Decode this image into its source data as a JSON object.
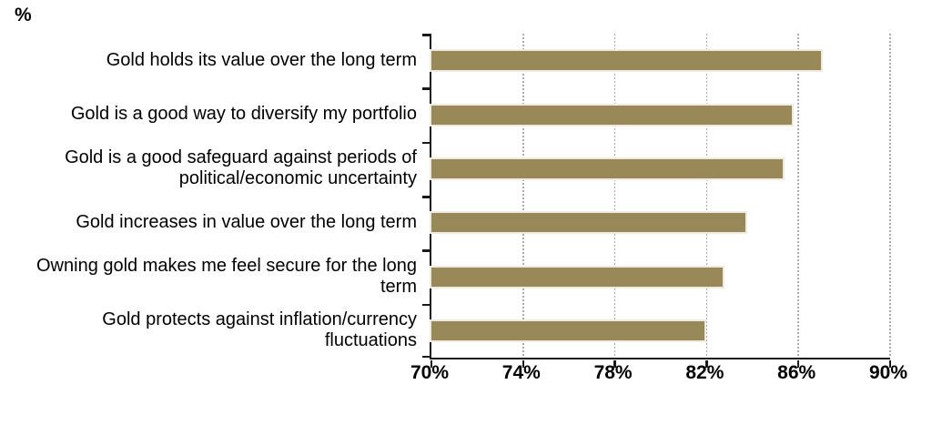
{
  "unit_label": "%",
  "chart_data": {
    "type": "bar",
    "orientation": "horizontal",
    "title": "",
    "xlabel": "",
    "ylabel": "%",
    "categories": [
      "Gold holds its value over the long term",
      "Gold is a good way to diversify my portfolio",
      "Gold is a good safeguard against periods of\npolitical/economic uncertainty",
      "Gold increases in value over the long term",
      "Owning gold makes me feel secure  for the long\nterm",
      "Gold protects against inflation/currency\nfluctuations"
    ],
    "values": [
      87,
      85.7,
      85.3,
      83.7,
      82.7,
      81.9
    ],
    "value_unit": "%",
    "axis": {
      "min": 70,
      "max": 90,
      "tick_step": 4,
      "tick_labels": [
        "70%",
        "74%",
        "78%",
        "82%",
        "86%",
        "90%"
      ]
    },
    "grid": true,
    "legend": false,
    "colors": {
      "bar_fill": "#9a8958",
      "bar_outline": "#efebe0",
      "axis_line": "#1a1a1a",
      "gridline": "#acacac",
      "text": "#000000"
    }
  }
}
